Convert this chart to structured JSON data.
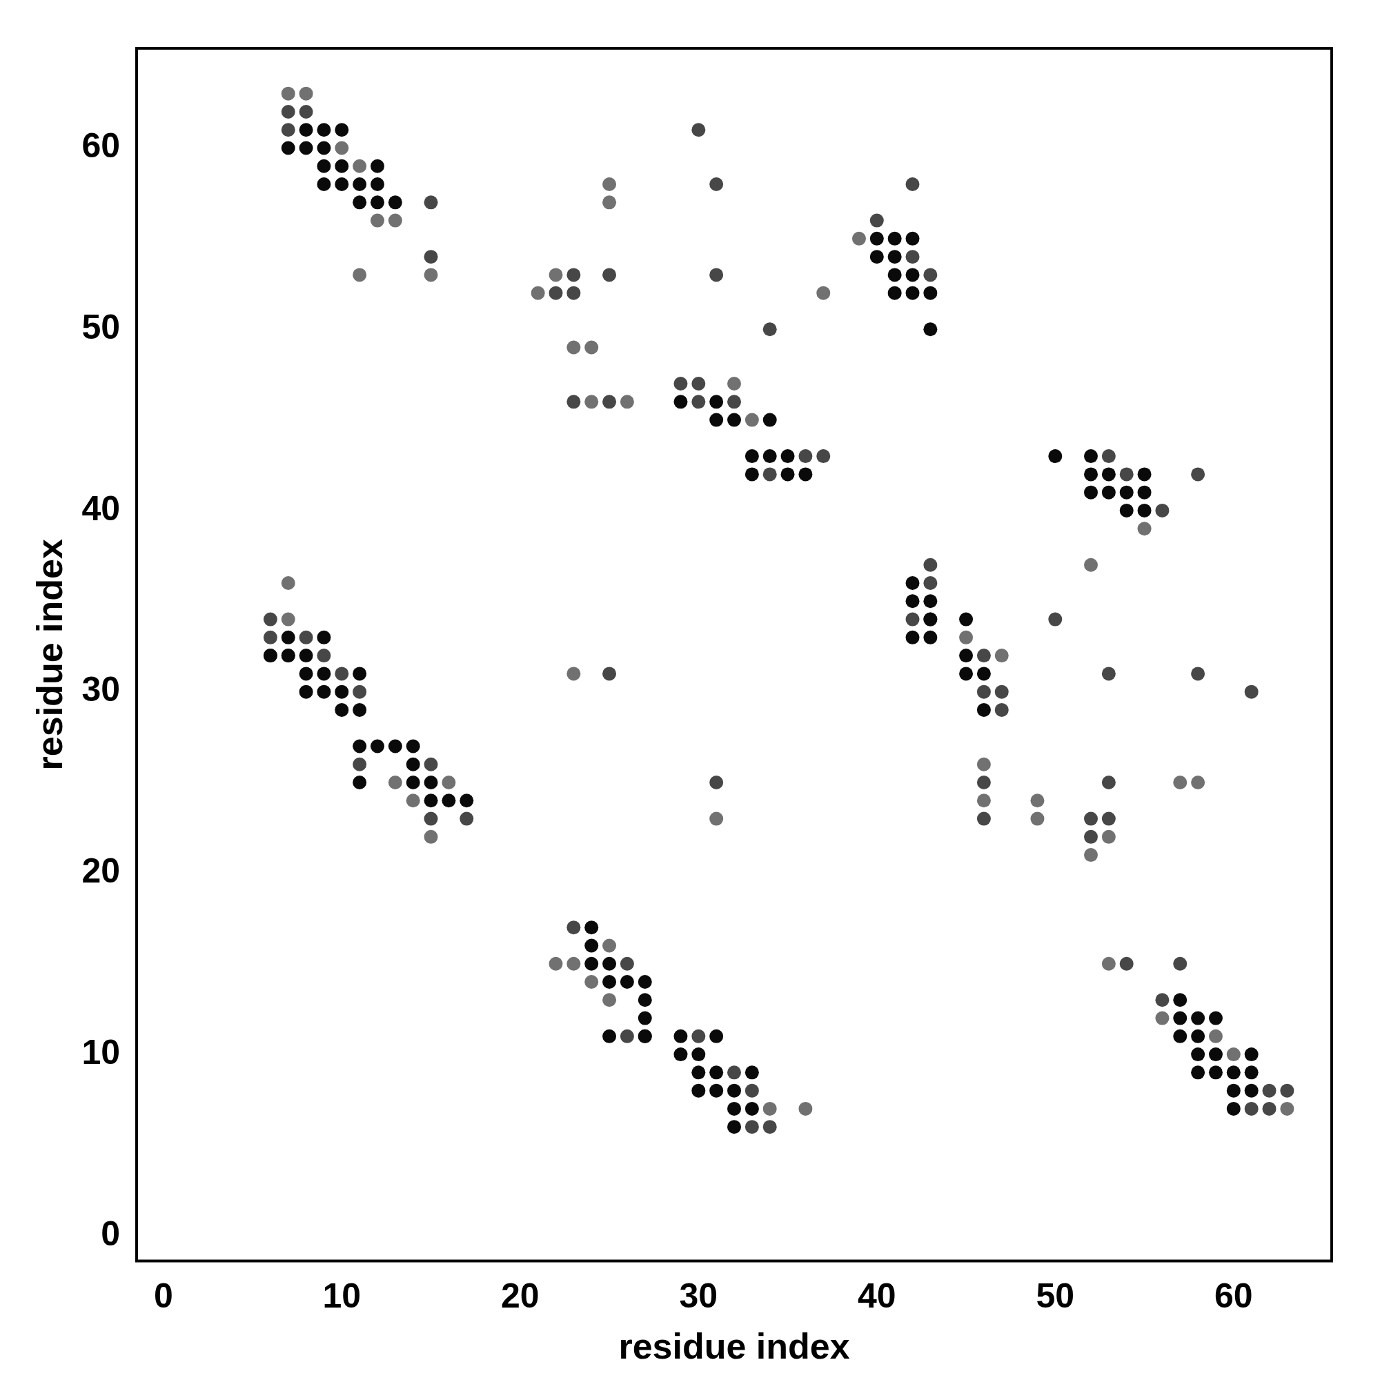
{
  "chart_data": {
    "type": "scatter",
    "xlabel": "residue index",
    "ylabel": "residue index",
    "xlim": [
      -1.5,
      65.5
    ],
    "ylim": [
      -1.4,
      65.5
    ],
    "xticks": [
      0,
      10,
      20,
      30,
      40,
      50,
      60
    ],
    "yticks": [
      0,
      10,
      20,
      30,
      40,
      50,
      60
    ],
    "grid": false,
    "legend": false,
    "marker": "circle",
    "series": [
      {
        "color": "#0a0a0a",
        "x": [
          8,
          9,
          10,
          7,
          8,
          9,
          9,
          10,
          12,
          9,
          10,
          11,
          12,
          11,
          12,
          13,
          40,
          41,
          42,
          40,
          41,
          41,
          42,
          41,
          42,
          43,
          43,
          29,
          31,
          31,
          32,
          34,
          33,
          34,
          35,
          33,
          35,
          36,
          50,
          52,
          52,
          53,
          55,
          52,
          53,
          54,
          55,
          54,
          55,
          42,
          42,
          43,
          43,
          42,
          43,
          45,
          45,
          45,
          46,
          46,
          6,
          7,
          7,
          9,
          6,
          7,
          8,
          8,
          9,
          11,
          8,
          9,
          10,
          10,
          11,
          11,
          12,
          13,
          14,
          14,
          11,
          14,
          15,
          15,
          16,
          17,
          24,
          24,
          24,
          25,
          25,
          26,
          27,
          27,
          27,
          27,
          25,
          27,
          29,
          31,
          29,
          30,
          30,
          31,
          33,
          30,
          31,
          32,
          32,
          33,
          32,
          57,
          57,
          58,
          59,
          57,
          58,
          58,
          59,
          61,
          58,
          59,
          60,
          61,
          60,
          61,
          60
        ],
        "values": [
          61,
          61,
          61,
          60,
          60,
          60,
          59,
          59,
          59,
          58,
          58,
          58,
          58,
          57,
          57,
          57,
          55,
          55,
          55,
          54,
          54,
          53,
          53,
          52,
          52,
          52,
          50,
          46,
          46,
          45,
          45,
          45,
          43,
          43,
          43,
          42,
          42,
          42,
          43,
          43,
          42,
          42,
          42,
          41,
          41,
          41,
          41,
          40,
          40,
          36,
          35,
          35,
          34,
          33,
          33,
          34,
          32,
          31,
          31,
          29,
          32,
          33,
          32,
          33,
          32,
          32,
          32,
          31,
          31,
          31,
          30,
          30,
          30,
          29,
          29,
          27,
          27,
          27,
          27,
          26,
          25,
          25,
          25,
          24,
          24,
          24,
          17,
          16,
          15,
          15,
          14,
          14,
          14,
          13,
          12,
          11,
          11,
          11,
          11,
          11,
          10,
          10,
          9,
          9,
          9,
          8,
          8,
          8,
          7,
          7,
          6,
          13,
          12,
          12,
          12,
          11,
          11,
          10,
          10,
          10,
          9,
          9,
          9,
          9,
          8,
          8,
          7
        ]
      },
      {
        "color": "#474747",
        "x": [
          7,
          8,
          7,
          15,
          15,
          22,
          23,
          23,
          25,
          31,
          30,
          31,
          42,
          40,
          42,
          43,
          34,
          29,
          30,
          23,
          25,
          30,
          32,
          36,
          37,
          34,
          53,
          54,
          58,
          56,
          43,
          43,
          43,
          42,
          50,
          46,
          46,
          47,
          53,
          58,
          47,
          61,
          6,
          6,
          8,
          9,
          10,
          11,
          11,
          15,
          15,
          17,
          25,
          31,
          23,
          26,
          26,
          30,
          32,
          33,
          33,
          34,
          46,
          53,
          46,
          52,
          53,
          52,
          54,
          57,
          56,
          62,
          63,
          61,
          62
        ],
        "values": [
          62,
          62,
          61,
          57,
          54,
          52,
          52,
          53,
          53,
          53,
          61,
          58,
          58,
          56,
          54,
          53,
          50,
          47,
          47,
          46,
          46,
          46,
          46,
          43,
          43,
          42,
          43,
          42,
          42,
          40,
          37,
          36,
          34,
          34,
          34,
          32,
          30,
          30,
          31,
          31,
          29,
          30,
          34,
          33,
          33,
          32,
          31,
          30,
          26,
          26,
          23,
          23,
          31,
          25,
          17,
          15,
          11,
          11,
          9,
          8,
          6,
          6,
          25,
          25,
          23,
          23,
          23,
          22,
          15,
          15,
          13,
          8,
          8,
          7,
          7
        ]
      },
      {
        "color": "#717171",
        "x": [
          7,
          8,
          10,
          11,
          12,
          13,
          11,
          15,
          21,
          22,
          25,
          25,
          37,
          39,
          23,
          24,
          32,
          24,
          26,
          33,
          55,
          52,
          45,
          47,
          7,
          7,
          13,
          16,
          14,
          15,
          23,
          31,
          22,
          23,
          25,
          24,
          25,
          46,
          57,
          58,
          46,
          49,
          49,
          53,
          52,
          53,
          59,
          56,
          60,
          63,
          34,
          36
        ],
        "values": [
          63,
          63,
          60,
          59,
          56,
          56,
          53,
          53,
          52,
          53,
          58,
          57,
          52,
          55,
          49,
          49,
          47,
          46,
          46,
          45,
          39,
          37,
          33,
          32,
          36,
          34,
          25,
          25,
          24,
          22,
          31,
          23,
          15,
          15,
          16,
          14,
          13,
          26,
          25,
          25,
          24,
          24,
          23,
          22,
          21,
          15,
          11,
          12,
          10,
          7,
          7,
          7
        ]
      }
    ]
  }
}
